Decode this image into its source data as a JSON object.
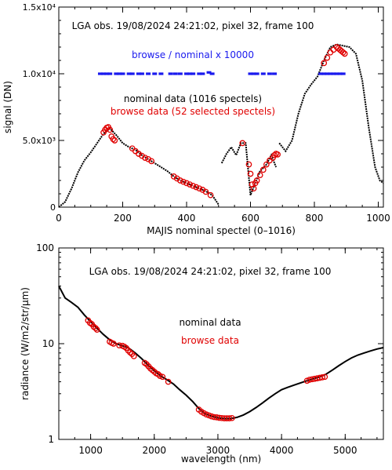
{
  "colors": {
    "nominal": "#000000",
    "browse": "#e00000",
    "ratio": "#1a1aee",
    "axis": "#000000"
  },
  "chart_data": [
    {
      "type": "scatter",
      "annotation": "LGA obs. 19/08/2024 24:21:02, pixel 32, frame 100",
      "xlabel": "MAJIS nominal spectel (0–1016)",
      "ylabel": "signal (DN)",
      "xlim": [
        0,
        1016
      ],
      "ylim": [
        0,
        15000
      ],
      "xticks": [
        0,
        200,
        400,
        600,
        800,
        1000
      ],
      "yticks": [
        {
          "value": 0,
          "label": "0"
        },
        {
          "value": 5000,
          "label": "5.0x10³"
        },
        {
          "value": 10000,
          "label": "1.0x10⁴"
        },
        {
          "value": 15000,
          "label": "1.5x10⁴"
        }
      ],
      "legend": [
        {
          "key": "ratio",
          "text": "browse / nominal x 10000",
          "color": "#1a1aee"
        },
        {
          "key": "nominal",
          "text": "nominal data (1016 spectels)",
          "color": "#000000"
        },
        {
          "key": "browse",
          "text": "browse data (52 selected spectels)",
          "color": "#e00000"
        }
      ],
      "series": [
        {
          "key": "nominal",
          "name": "nominal data (1016 spectels)",
          "segments": [
            [
              [
                0,
                0
              ],
              [
                20,
                400
              ],
              [
                40,
                1400
              ],
              [
                60,
                2600
              ],
              [
                80,
                3500
              ],
              [
                100,
                4100
              ],
              [
                120,
                4800
              ],
              [
                140,
                5500
              ],
              [
                160,
                5900
              ],
              [
                180,
                5400
              ],
              [
                200,
                4800
              ],
              [
                220,
                4500
              ],
              [
                240,
                4300
              ],
              [
                260,
                3900
              ],
              [
                280,
                3600
              ],
              [
                300,
                3300
              ],
              [
                320,
                3000
              ],
              [
                340,
                2700
              ],
              [
                360,
                2300
              ],
              [
                380,
                2000
              ],
              [
                400,
                1800
              ],
              [
                420,
                1600
              ],
              [
                440,
                1400
              ],
              [
                460,
                1200
              ],
              [
                480,
                900
              ],
              [
                500,
                200
              ]
            ],
            [
              [
                510,
                3300
              ],
              [
                525,
                4000
              ],
              [
                540,
                4500
              ],
              [
                555,
                3900
              ],
              [
                570,
                4800
              ],
              [
                585,
                4800
              ],
              [
                600,
                900
              ],
              [
                615,
                1800
              ],
              [
                630,
                2700
              ],
              [
                650,
                3200
              ],
              [
                665,
                3900
              ],
              [
                680,
                3000
              ]
            ],
            [
              [
                690,
                4800
              ],
              [
                710,
                4200
              ],
              [
                730,
                5000
              ],
              [
                750,
                7000
              ],
              [
                770,
                8500
              ],
              [
                790,
                9200
              ],
              [
                810,
                9800
              ],
              [
                830,
                11000
              ],
              [
                850,
                12000
              ],
              [
                870,
                12200
              ],
              [
                890,
                12100
              ],
              [
                910,
                12000
              ],
              [
                930,
                11500
              ],
              [
                950,
                9500
              ],
              [
                970,
                6000
              ],
              [
                990,
                3000
              ],
              [
                1005,
                2000
              ],
              [
                1016,
                1800
              ]
            ]
          ]
        },
        {
          "key": "browse",
          "name": "browse data (52 selected spectels)",
          "points": [
            [
              140,
              5600
            ],
            [
              145,
              5800
            ],
            [
              150,
              5950
            ],
            [
              155,
              6000
            ],
            [
              160,
              5800
            ],
            [
              165,
              5300
            ],
            [
              170,
              5100
            ],
            [
              175,
              5000
            ],
            [
              230,
              4400
            ],
            [
              240,
              4200
            ],
            [
              250,
              4000
            ],
            [
              260,
              3850
            ],
            [
              270,
              3700
            ],
            [
              280,
              3600
            ],
            [
              290,
              3450
            ],
            [
              360,
              2300
            ],
            [
              370,
              2150
            ],
            [
              380,
              2000
            ],
            [
              390,
              1900
            ],
            [
              400,
              1800
            ],
            [
              410,
              1700
            ],
            [
              420,
              1600
            ],
            [
              430,
              1500
            ],
            [
              440,
              1400
            ],
            [
              450,
              1300
            ],
            [
              460,
              1150
            ],
            [
              475,
              900
            ],
            [
              575,
              4800
            ],
            [
              595,
              3200
            ],
            [
              600,
              2500
            ],
            [
              605,
              1700
            ],
            [
              610,
              1400
            ],
            [
              615,
              1800
            ],
            [
              620,
              2000
            ],
            [
              630,
              2400
            ],
            [
              640,
              2800
            ],
            [
              650,
              3200
            ],
            [
              660,
              3500
            ],
            [
              670,
              3700
            ],
            [
              675,
              3900
            ],
            [
              680,
              4000
            ],
            [
              685,
              3950
            ],
            [
              830,
              10800
            ],
            [
              840,
              11200
            ],
            [
              850,
              11600
            ],
            [
              860,
              11800
            ],
            [
              870,
              12000
            ],
            [
              875,
              11900
            ],
            [
              880,
              11800
            ],
            [
              885,
              11700
            ],
            [
              890,
              11600
            ],
            [
              895,
              11500
            ]
          ]
        },
        {
          "key": "ratio",
          "name": "browse / nominal x 10000",
          "points": [
            [
              130,
              10000
            ],
            [
              140,
              10000
            ],
            [
              150,
              10000
            ],
            [
              160,
              10000
            ],
            [
              180,
              10000
            ],
            [
              190,
              10000
            ],
            [
              200,
              10000
            ],
            [
              220,
              10000
            ],
            [
              230,
              10000
            ],
            [
              250,
              10000
            ],
            [
              260,
              10000
            ],
            [
              280,
              10000
            ],
            [
              300,
              10000
            ],
            [
              320,
              10000
            ],
            [
              350,
              10000
            ],
            [
              365,
              10000
            ],
            [
              380,
              10000
            ],
            [
              400,
              10000
            ],
            [
              410,
              10000
            ],
            [
              420,
              10000
            ],
            [
              440,
              10000
            ],
            [
              450,
              10000
            ],
            [
              470,
              10100
            ],
            [
              480,
              10000
            ],
            [
              600,
              10000
            ],
            [
              610,
              10000
            ],
            [
              620,
              10000
            ],
            [
              640,
              10000
            ],
            [
              660,
              10000
            ],
            [
              675,
              10000
            ],
            [
              820,
              10000
            ],
            [
              830,
              10000
            ],
            [
              840,
              10000
            ],
            [
              850,
              10000
            ],
            [
              860,
              10000
            ],
            [
              870,
              10000
            ],
            [
              880,
              10000
            ],
            [
              890,
              10000
            ]
          ]
        }
      ]
    },
    {
      "type": "line",
      "annotation": "LGA obs. 19/08/2024 24:21:02, pixel 32, frame 100",
      "xlabel": "wavelength (nm)",
      "ylabel": "radiance (W/m2/str/μm)",
      "xscale": "linear",
      "yscale": "log",
      "xlim": [
        500,
        5600
      ],
      "ylim": [
        1,
        100
      ],
      "xticks": [
        1000,
        2000,
        3000,
        4000,
        5000
      ],
      "yticks": [
        1,
        10,
        100
      ],
      "legend": [
        {
          "key": "nominal",
          "text": "nominal data",
          "color": "#000000"
        },
        {
          "key": "browse",
          "text": "browse data",
          "color": "#e00000"
        }
      ],
      "series": [
        {
          "key": "nominal",
          "name": "nominal data",
          "points": [
            [
              500,
              40
            ],
            [
              600,
              30
            ],
            [
              700,
              27
            ],
            [
              800,
              24
            ],
            [
              900,
              20
            ],
            [
              1000,
              17
            ],
            [
              1100,
              14.5
            ],
            [
              1200,
              12.5
            ],
            [
              1300,
              11
            ],
            [
              1400,
              10
            ],
            [
              1500,
              9.5
            ],
            [
              1600,
              9
            ],
            [
              1700,
              8
            ],
            [
              1800,
              7
            ],
            [
              1900,
              6
            ],
            [
              2000,
              5.2
            ],
            [
              2100,
              4.6
            ],
            [
              2200,
              4.2
            ],
            [
              2300,
              3.8
            ],
            [
              2400,
              3.3
            ],
            [
              2500,
              2.9
            ],
            [
              2600,
              2.5
            ],
            [
              2700,
              2.1
            ],
            [
              2800,
              1.85
            ],
            [
              2900,
              1.75
            ],
            [
              3000,
              1.68
            ],
            [
              3100,
              1.65
            ],
            [
              3200,
              1.65
            ],
            [
              3300,
              1.7
            ],
            [
              3400,
              1.8
            ],
            [
              3500,
              1.95
            ],
            [
              3600,
              2.15
            ],
            [
              3700,
              2.4
            ],
            [
              3800,
              2.7
            ],
            [
              3900,
              3.0
            ],
            [
              4000,
              3.3
            ],
            [
              4100,
              3.5
            ],
            [
              4200,
              3.7
            ],
            [
              4300,
              3.9
            ],
            [
              4400,
              4.1
            ],
            [
              4500,
              4.3
            ],
            [
              4600,
              4.5
            ],
            [
              4700,
              4.8
            ],
            [
              4800,
              5.3
            ],
            [
              4900,
              5.9
            ],
            [
              5000,
              6.5
            ],
            [
              5100,
              7.1
            ],
            [
              5200,
              7.6
            ],
            [
              5300,
              8.0
            ],
            [
              5400,
              8.4
            ],
            [
              5500,
              8.8
            ],
            [
              5600,
              9.1
            ]
          ]
        },
        {
          "key": "browse",
          "name": "browse data",
          "points": [
            [
              960,
              17.5
            ],
            [
              990,
              16.5
            ],
            [
              1020,
              16
            ],
            [
              1050,
              15
            ],
            [
              1080,
              14.5
            ],
            [
              1100,
              14
            ],
            [
              1300,
              10.5
            ],
            [
              1330,
              10.2
            ],
            [
              1360,
              10
            ],
            [
              1450,
              9.6
            ],
            [
              1500,
              9.5
            ],
            [
              1530,
              9.3
            ],
            [
              1560,
              9.0
            ],
            [
              1590,
              8.5
            ],
            [
              1620,
              8.1
            ],
            [
              1650,
              7.8
            ],
            [
              1680,
              7.4
            ],
            [
              1850,
              6.3
            ],
            [
              1880,
              6.1
            ],
            [
              1910,
              5.8
            ],
            [
              1940,
              5.5
            ],
            [
              1970,
              5.3
            ],
            [
              2000,
              5.1
            ],
            [
              2030,
              4.9
            ],
            [
              2060,
              4.8
            ],
            [
              2090,
              4.6
            ],
            [
              2130,
              4.5
            ],
            [
              2220,
              4.0
            ],
            [
              2700,
              2.05
            ],
            [
              2740,
              1.95
            ],
            [
              2780,
              1.88
            ],
            [
              2820,
              1.82
            ],
            [
              2860,
              1.78
            ],
            [
              2900,
              1.74
            ],
            [
              2940,
              1.71
            ],
            [
              2980,
              1.7
            ],
            [
              3020,
              1.68
            ],
            [
              3060,
              1.67
            ],
            [
              3100,
              1.66
            ],
            [
              3140,
              1.66
            ],
            [
              3180,
              1.66
            ],
            [
              3220,
              1.67
            ],
            [
              4400,
              4.1
            ],
            [
              4440,
              4.2
            ],
            [
              4480,
              4.25
            ],
            [
              4520,
              4.3
            ],
            [
              4560,
              4.35
            ],
            [
              4600,
              4.4
            ],
            [
              4640,
              4.45
            ],
            [
              4680,
              4.5
            ]
          ]
        }
      ]
    }
  ]
}
